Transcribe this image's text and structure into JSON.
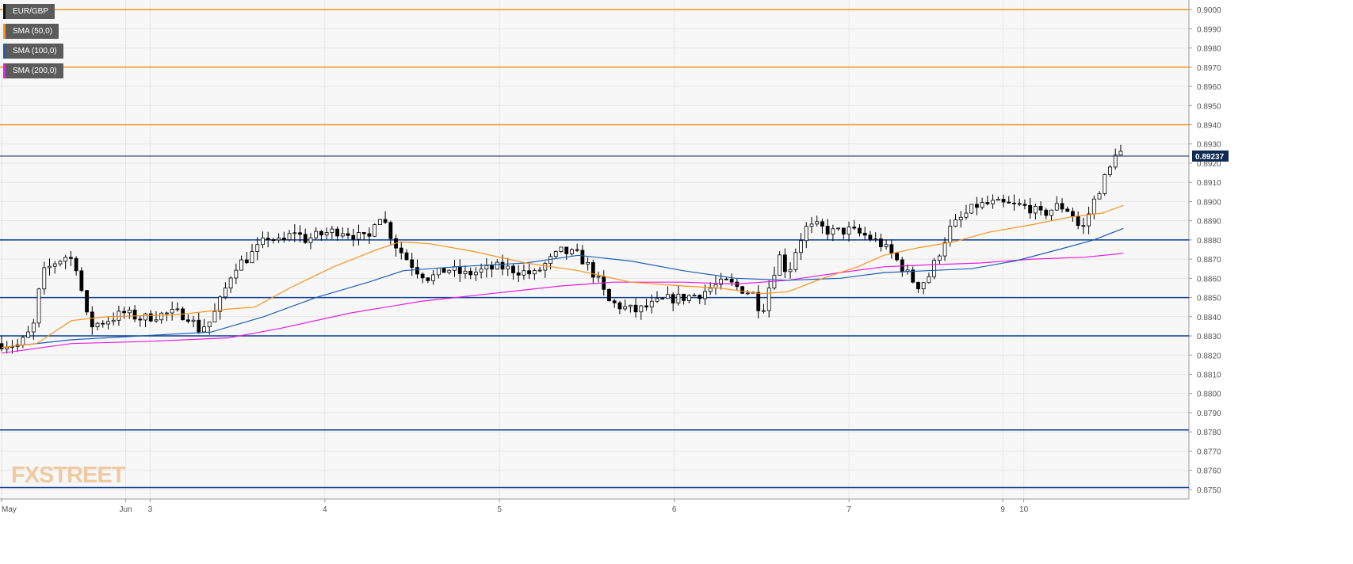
{
  "legend": [
    {
      "label": "EUR/GBP",
      "color": "#111111"
    },
    {
      "label": "SMA (50,0)",
      "color": "#f7931e"
    },
    {
      "label": "SMA (100,0)",
      "color": "#1c5fb2"
    },
    {
      "label": "SMA (200,0)",
      "color": "#e61fe0"
    }
  ],
  "watermark": "FXSTREET",
  "colors": {
    "orange_level": "#f7931e",
    "blue_level": "#0b3d91",
    "sma50": "#f7931e",
    "sma100": "#1c5fb2",
    "sma200": "#e61fe0",
    "candle_up": "#ffffff",
    "candle_down": "#000000",
    "price_tag_bg": "#0e2a53"
  },
  "chart_data": {
    "type": "candlestick",
    "symbol": "EUR/GBP",
    "ylim": [
      0.8745,
      0.9005
    ],
    "y_ticks": [
      "0.9000",
      "0.8990",
      "0.8980",
      "0.8970",
      "0.8960",
      "0.8950",
      "0.8940",
      "0.8930",
      "0.8920",
      "0.8910",
      "0.8900",
      "0.8890",
      "0.8880",
      "0.8870",
      "0.8860",
      "0.8850",
      "0.8840",
      "0.8830",
      "0.8820",
      "0.8810",
      "0.8800",
      "0.8790",
      "0.8780",
      "0.8770",
      "0.8760",
      "0.8750"
    ],
    "x_labels": [
      {
        "label": "May",
        "t": 0
      },
      {
        "label": "Jun",
        "t": 0.71
      },
      {
        "label": "3",
        "t": 0.85
      },
      {
        "label": "4",
        "t": 1.85
      },
      {
        "label": "5",
        "t": 2.85
      },
      {
        "label": "6",
        "t": 3.85
      },
      {
        "label": "7",
        "t": 4.85
      },
      {
        "label": "9",
        "t": 5.73
      },
      {
        "label": "10",
        "t": 5.85
      }
    ],
    "last_price": "0.89237",
    "last_value": 0.89237,
    "resistance_levels": [
      0.9,
      0.897,
      0.894
    ],
    "support_levels": [
      0.888,
      0.885,
      0.883,
      0.8781,
      0.8751
    ],
    "price_path": [
      [
        0.0,
        0.8826
      ],
      [
        0.1,
        0.8825
      ],
      [
        0.18,
        0.8834
      ],
      [
        0.23,
        0.8862
      ],
      [
        0.3,
        0.8868
      ],
      [
        0.38,
        0.8872
      ],
      [
        0.43,
        0.8866
      ],
      [
        0.47,
        0.8848
      ],
      [
        0.5,
        0.8835
      ],
      [
        0.6,
        0.8838
      ],
      [
        0.7,
        0.8842
      ],
      [
        0.8,
        0.8839
      ],
      [
        0.9,
        0.8841
      ],
      [
        1.0,
        0.8842
      ],
      [
        1.08,
        0.884
      ],
      [
        1.12,
        0.8833
      ],
      [
        1.2,
        0.8838
      ],
      [
        1.27,
        0.8852
      ],
      [
        1.33,
        0.8866
      ],
      [
        1.4,
        0.887
      ],
      [
        1.47,
        0.8876
      ],
      [
        1.53,
        0.8882
      ],
      [
        1.6,
        0.8878
      ],
      [
        1.68,
        0.8885
      ],
      [
        1.73,
        0.888
      ],
      [
        1.8,
        0.8882
      ],
      [
        1.87,
        0.8884
      ],
      [
        1.95,
        0.8885
      ],
      [
        2.03,
        0.8882
      ],
      [
        2.1,
        0.888
      ],
      [
        2.15,
        0.8895
      ],
      [
        2.2,
        0.8888
      ],
      [
        2.25,
        0.8878
      ],
      [
        2.32,
        0.887
      ],
      [
        2.38,
        0.8864
      ],
      [
        2.45,
        0.886
      ],
      [
        2.55,
        0.8865
      ],
      [
        2.65,
        0.8862
      ],
      [
        2.75,
        0.8864
      ],
      [
        2.85,
        0.8866
      ],
      [
        2.95,
        0.8864
      ],
      [
        3.05,
        0.8862
      ],
      [
        3.12,
        0.8868
      ],
      [
        3.2,
        0.8874
      ],
      [
        3.3,
        0.8872
      ],
      [
        3.36,
        0.8866
      ],
      [
        3.42,
        0.8858
      ],
      [
        3.47,
        0.8848
      ],
      [
        3.55,
        0.8845
      ],
      [
        3.63,
        0.8843
      ],
      [
        3.72,
        0.8846
      ],
      [
        3.8,
        0.8849
      ],
      [
        3.9,
        0.885
      ],
      [
        4.0,
        0.8852
      ],
      [
        4.08,
        0.8856
      ],
      [
        4.15,
        0.8858
      ],
      [
        4.22,
        0.8855
      ],
      [
        4.3,
        0.8852
      ],
      [
        4.35,
        0.8842
      ],
      [
        4.4,
        0.8858
      ],
      [
        4.45,
        0.8872
      ],
      [
        4.5,
        0.8862
      ],
      [
        4.55,
        0.8876
      ],
      [
        4.6,
        0.8886
      ],
      [
        4.67,
        0.8887
      ],
      [
        4.75,
        0.8884
      ],
      [
        4.85,
        0.8885
      ],
      [
        4.95,
        0.8882
      ],
      [
        5.03,
        0.8878
      ],
      [
        5.1,
        0.8872
      ],
      [
        5.17,
        0.8864
      ],
      [
        5.24,
        0.8856
      ],
      [
        5.3,
        0.886
      ],
      [
        5.36,
        0.8872
      ],
      [
        5.42,
        0.8885
      ],
      [
        5.5,
        0.8892
      ],
      [
        5.58,
        0.8898
      ],
      [
        5.68,
        0.8899
      ],
      [
        5.78,
        0.8898
      ],
      [
        5.88,
        0.8897
      ],
      [
        5.95,
        0.8893
      ],
      [
        6.05,
        0.8898
      ],
      [
        6.12,
        0.8895
      ],
      [
        6.18,
        0.8884
      ],
      [
        6.24,
        0.8898
      ],
      [
        6.3,
        0.891
      ],
      [
        6.35,
        0.8918
      ],
      [
        6.38,
        0.8928
      ],
      [
        6.42,
        0.8924
      ]
    ],
    "sma50": [
      [
        0.0,
        0.8824
      ],
      [
        0.2,
        0.8826
      ],
      [
        0.4,
        0.8838
      ],
      [
        0.6,
        0.884
      ],
      [
        1.0,
        0.8841
      ],
      [
        1.3,
        0.8844
      ],
      [
        1.45,
        0.8845
      ],
      [
        1.65,
        0.8855
      ],
      [
        1.9,
        0.8866
      ],
      [
        2.15,
        0.8875
      ],
      [
        2.28,
        0.8879
      ],
      [
        2.45,
        0.8878
      ],
      [
        2.7,
        0.8874
      ],
      [
        3.0,
        0.8868
      ],
      [
        3.3,
        0.8864
      ],
      [
        3.6,
        0.8858
      ],
      [
        3.9,
        0.8856
      ],
      [
        4.1,
        0.8855
      ],
      [
        4.35,
        0.8852
      ],
      [
        4.5,
        0.8853
      ],
      [
        4.7,
        0.886
      ],
      [
        4.9,
        0.8866
      ],
      [
        5.05,
        0.8872
      ],
      [
        5.25,
        0.8876
      ],
      [
        5.45,
        0.8879
      ],
      [
        5.65,
        0.8884
      ],
      [
        5.9,
        0.8888
      ],
      [
        6.12,
        0.8892
      ],
      [
        6.3,
        0.8894
      ],
      [
        6.42,
        0.8898
      ]
    ],
    "sma100": [
      [
        0.0,
        0.8824
      ],
      [
        0.4,
        0.8828
      ],
      [
        0.8,
        0.883
      ],
      [
        1.2,
        0.8832
      ],
      [
        1.5,
        0.884
      ],
      [
        1.8,
        0.885
      ],
      [
        2.1,
        0.8858
      ],
      [
        2.3,
        0.8864
      ],
      [
        2.6,
        0.8866
      ],
      [
        3.0,
        0.8868
      ],
      [
        3.3,
        0.8872
      ],
      [
        3.6,
        0.8869
      ],
      [
        3.9,
        0.8864
      ],
      [
        4.2,
        0.886
      ],
      [
        4.5,
        0.8859
      ],
      [
        4.8,
        0.886
      ],
      [
        5.05,
        0.8863
      ],
      [
        5.3,
        0.8864
      ],
      [
        5.55,
        0.8865
      ],
      [
        5.8,
        0.8869
      ],
      [
        6.05,
        0.8875
      ],
      [
        6.25,
        0.888
      ],
      [
        6.42,
        0.8886
      ]
    ],
    "sma200": [
      [
        0.0,
        0.8821
      ],
      [
        0.4,
        0.8826
      ],
      [
        0.8,
        0.8827
      ],
      [
        1.3,
        0.8829
      ],
      [
        1.6,
        0.8834
      ],
      [
        2.0,
        0.8842
      ],
      [
        2.4,
        0.8848
      ],
      [
        2.8,
        0.8852
      ],
      [
        3.2,
        0.8856
      ],
      [
        3.5,
        0.8858
      ],
      [
        3.9,
        0.8858
      ],
      [
        4.2,
        0.8857
      ],
      [
        4.5,
        0.8859
      ],
      [
        4.8,
        0.8863
      ],
      [
        5.05,
        0.8866
      ],
      [
        5.3,
        0.8867
      ],
      [
        5.6,
        0.8868
      ],
      [
        5.9,
        0.887
      ],
      [
        6.2,
        0.8871
      ],
      [
        6.42,
        0.8873
      ]
    ]
  }
}
